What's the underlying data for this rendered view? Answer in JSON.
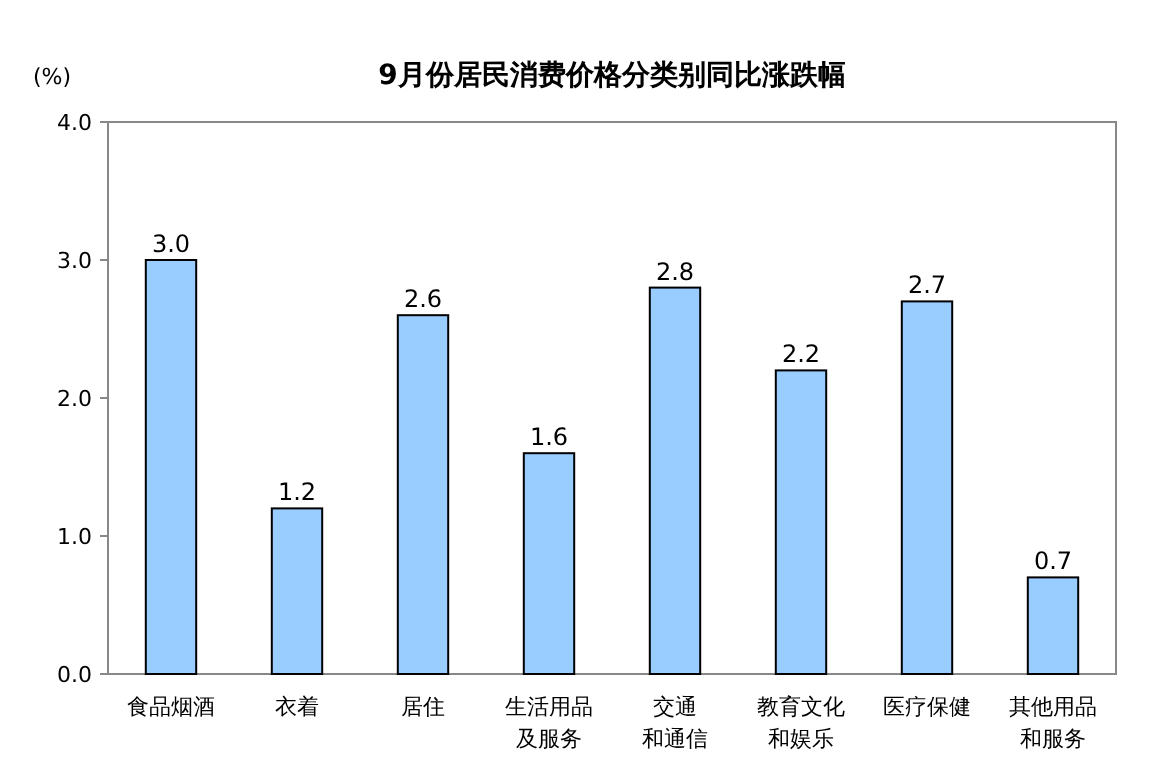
{
  "chart_data": {
    "type": "bar",
    "title": "9月份居民消费价格分类别同比涨跌幅",
    "ylabel": "(%)",
    "categories": [
      "食品烟酒",
      "衣着",
      "居住",
      "生活用品及服务",
      "交通和通信",
      "教育文化和娱乐",
      "医疗保健",
      "其他用品和服务"
    ],
    "values": [
      3.0,
      1.2,
      2.6,
      1.6,
      2.8,
      2.2,
      2.7,
      0.7
    ],
    "value_labels": [
      "3.0",
      "1.2",
      "2.6",
      "1.6",
      "2.8",
      "2.2",
      "2.7",
      "0.7"
    ],
    "color": "#99ccff",
    "ylim": [
      0,
      4
    ],
    "yticks": [
      {
        "value": 0,
        "label": "0.0"
      },
      {
        "value": 1,
        "label": "1.0"
      },
      {
        "value": 2,
        "label": "2.0"
      },
      {
        "value": 3,
        "label": "3.0"
      },
      {
        "value": 4,
        "label": "4.0"
      }
    ],
    "grid": false
  }
}
